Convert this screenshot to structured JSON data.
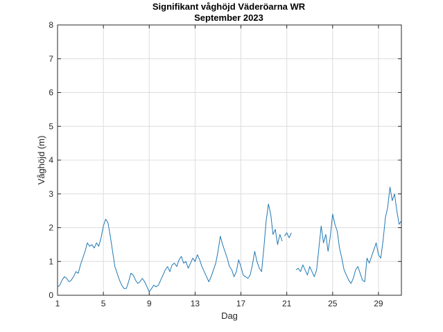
{
  "chart_data": {
    "type": "line",
    "title": "Signifikant våghöjd Väderöarna WR",
    "subtitle": "September 2023",
    "xlabel": "Dag",
    "ylabel": "Våghöjd (m)",
    "xlim": [
      1,
      31
    ],
    "ylim": [
      0,
      8
    ],
    "xticks": [
      1,
      5,
      9,
      13,
      17,
      21,
      25,
      29
    ],
    "yticks": [
      0,
      1,
      2,
      3,
      4,
      5,
      6,
      7,
      8
    ],
    "grid": true,
    "legend": "none",
    "color": "#1f77b4",
    "series": [
      {
        "segments": [
          [
            [
              1.0,
              0.25
            ],
            [
              1.2,
              0.3
            ],
            [
              1.4,
              0.45
            ],
            [
              1.6,
              0.55
            ],
            [
              1.8,
              0.5
            ],
            [
              2.0,
              0.4
            ],
            [
              2.2,
              0.45
            ],
            [
              2.4,
              0.55
            ],
            [
              2.6,
              0.7
            ],
            [
              2.8,
              0.65
            ],
            [
              3.0,
              0.9
            ],
            [
              3.2,
              1.1
            ],
            [
              3.4,
              1.3
            ],
            [
              3.6,
              1.55
            ],
            [
              3.8,
              1.45
            ],
            [
              4.0,
              1.5
            ],
            [
              4.2,
              1.4
            ],
            [
              4.4,
              1.55
            ],
            [
              4.6,
              1.45
            ],
            [
              4.8,
              1.7
            ],
            [
              5.0,
              2.05
            ],
            [
              5.2,
              2.25
            ],
            [
              5.4,
              2.15
            ],
            [
              5.6,
              1.75
            ],
            [
              5.8,
              1.3
            ],
            [
              6.0,
              0.85
            ],
            [
              6.2,
              0.65
            ],
            [
              6.4,
              0.45
            ],
            [
              6.6,
              0.3
            ],
            [
              6.8,
              0.2
            ],
            [
              7.0,
              0.2
            ],
            [
              7.2,
              0.4
            ],
            [
              7.4,
              0.65
            ],
            [
              7.6,
              0.6
            ],
            [
              7.8,
              0.45
            ],
            [
              8.0,
              0.35
            ],
            [
              8.2,
              0.4
            ],
            [
              8.4,
              0.5
            ],
            [
              8.6,
              0.4
            ],
            [
              8.8,
              0.25
            ],
            [
              9.0,
              0.1
            ],
            [
              9.2,
              0.2
            ],
            [
              9.4,
              0.3
            ],
            [
              9.6,
              0.25
            ],
            [
              9.8,
              0.3
            ],
            [
              10.0,
              0.45
            ],
            [
              10.2,
              0.6
            ],
            [
              10.4,
              0.75
            ],
            [
              10.6,
              0.85
            ],
            [
              10.8,
              0.7
            ],
            [
              11.0,
              0.9
            ],
            [
              11.2,
              0.95
            ],
            [
              11.4,
              0.85
            ],
            [
              11.6,
              1.05
            ],
            [
              11.8,
              1.15
            ],
            [
              12.0,
              0.95
            ],
            [
              12.2,
              1.0
            ],
            [
              12.4,
              0.8
            ],
            [
              12.6,
              0.95
            ],
            [
              12.8,
              1.1
            ],
            [
              13.0,
              1.0
            ],
            [
              13.2,
              1.2
            ],
            [
              13.4,
              1.05
            ],
            [
              13.6,
              0.85
            ],
            [
              13.8,
              0.7
            ],
            [
              14.0,
              0.55
            ],
            [
              14.2,
              0.4
            ],
            [
              14.4,
              0.55
            ],
            [
              14.6,
              0.75
            ],
            [
              14.8,
              0.95
            ],
            [
              15.0,
              1.3
            ],
            [
              15.2,
              1.75
            ],
            [
              15.4,
              1.5
            ],
            [
              15.6,
              1.3
            ],
            [
              15.8,
              1.1
            ],
            [
              16.0,
              0.85
            ],
            [
              16.2,
              0.75
            ],
            [
              16.4,
              0.55
            ],
            [
              16.6,
              0.7
            ],
            [
              16.8,
              1.05
            ],
            [
              17.0,
              0.85
            ],
            [
              17.2,
              0.6
            ],
            [
              17.4,
              0.55
            ],
            [
              17.6,
              0.5
            ],
            [
              17.8,
              0.6
            ],
            [
              18.0,
              0.9
            ],
            [
              18.2,
              1.3
            ],
            [
              18.4,
              1.0
            ],
            [
              18.6,
              0.8
            ],
            [
              18.8,
              0.7
            ],
            [
              19.0,
              1.4
            ],
            [
              19.2,
              2.2
            ],
            [
              19.4,
              2.7
            ],
            [
              19.6,
              2.4
            ],
            [
              19.8,
              1.8
            ],
            [
              20.0,
              1.95
            ],
            [
              20.2,
              1.5
            ],
            [
              20.4,
              1.8
            ],
            [
              20.6,
              1.6
            ]
          ],
          [
            [
              20.8,
              1.75
            ],
            [
              21.0,
              1.85
            ],
            [
              21.2,
              1.7
            ],
            [
              21.4,
              1.85
            ]
          ],
          [
            [
              21.8,
              0.75
            ],
            [
              22.0,
              0.8
            ],
            [
              22.2,
              0.7
            ],
            [
              22.4,
              0.9
            ],
            [
              22.6,
              0.75
            ],
            [
              22.8,
              0.6
            ],
            [
              23.0,
              0.85
            ],
            [
              23.2,
              0.7
            ],
            [
              23.4,
              0.55
            ],
            [
              23.6,
              0.75
            ],
            [
              23.8,
              1.4
            ],
            [
              24.0,
              2.05
            ],
            [
              24.2,
              1.55
            ],
            [
              24.4,
              1.8
            ],
            [
              24.6,
              1.3
            ],
            [
              24.8,
              1.75
            ],
            [
              25.0,
              2.4
            ],
            [
              25.2,
              2.1
            ],
            [
              25.4,
              1.9
            ],
            [
              25.6,
              1.4
            ],
            [
              25.8,
              1.1
            ],
            [
              26.0,
              0.75
            ],
            [
              26.2,
              0.6
            ],
            [
              26.4,
              0.45
            ],
            [
              26.6,
              0.35
            ],
            [
              26.8,
              0.5
            ],
            [
              27.0,
              0.75
            ],
            [
              27.2,
              0.85
            ],
            [
              27.4,
              0.65
            ],
            [
              27.6,
              0.45
            ],
            [
              27.8,
              0.4
            ],
            [
              28.0,
              1.1
            ],
            [
              28.2,
              0.95
            ],
            [
              28.4,
              1.15
            ],
            [
              28.6,
              1.35
            ],
            [
              28.8,
              1.55
            ],
            [
              29.0,
              1.2
            ],
            [
              29.2,
              1.1
            ],
            [
              29.4,
              1.6
            ],
            [
              29.6,
              2.3
            ],
            [
              29.8,
              2.6
            ],
            [
              30.0,
              3.2
            ],
            [
              30.2,
              2.8
            ],
            [
              30.4,
              3.0
            ],
            [
              30.6,
              2.5
            ],
            [
              30.8,
              2.1
            ],
            [
              31.0,
              2.2
            ]
          ]
        ]
      }
    ]
  }
}
